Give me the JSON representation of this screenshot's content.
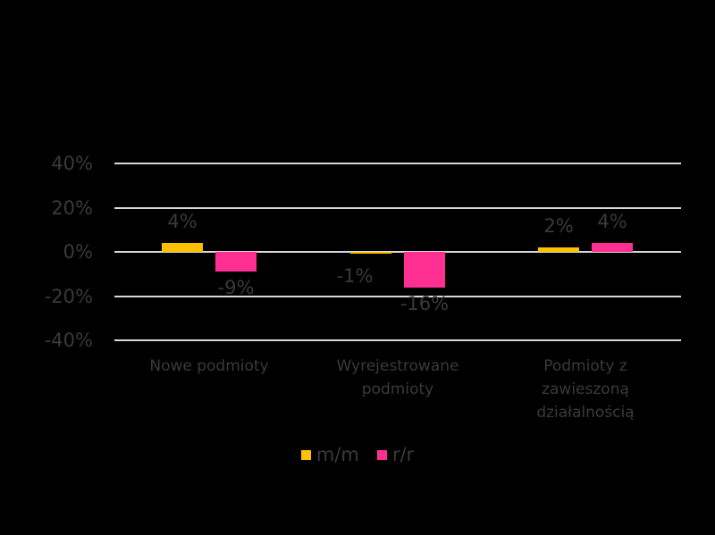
{
  "chart_data": {
    "type": "bar",
    "title": "",
    "xlabel": "",
    "ylabel": "",
    "categories": [
      "Nowe podmioty",
      "Wyrejestrowane podmioty",
      "Podmioty z zawieszoną działalnością"
    ],
    "category_lines": [
      [
        "Nowe podmioty"
      ],
      [
        "Wyrejestrowane",
        "podmioty"
      ],
      [
        "Podmioty z",
        "zawieszoną",
        "działalnością"
      ]
    ],
    "series": [
      {
        "name": "m/m",
        "color": "#ffc000",
        "values": [
          4,
          -1,
          2
        ],
        "labels": [
          "4%",
          "-1%",
          "2%"
        ]
      },
      {
        "name": "r/r",
        "color": "#ff2f92",
        "values": [
          -9,
          -16,
          4
        ],
        "labels": [
          "-9%",
          "-16%",
          "4%"
        ]
      }
    ],
    "ylim": [
      -40,
      40
    ],
    "yticks": [
      "40%",
      "20%",
      "0%",
      "-20%",
      "-40%"
    ],
    "grid": true,
    "legend_position": "bottom"
  },
  "legend": {
    "items": [
      {
        "label": "m/m"
      },
      {
        "label": "r/r"
      }
    ]
  }
}
